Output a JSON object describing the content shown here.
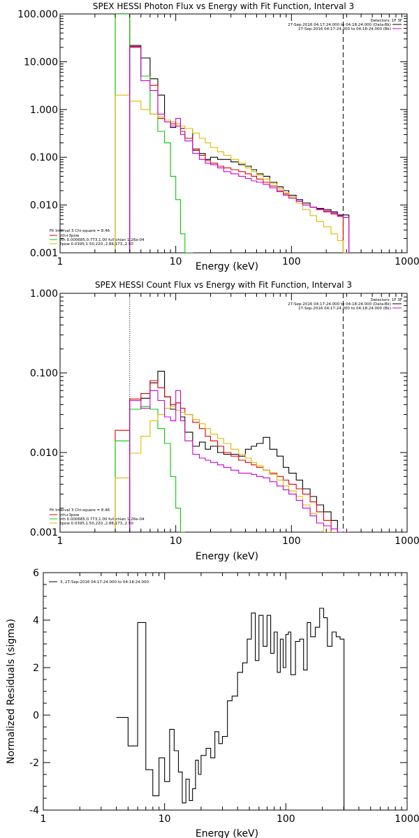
{
  "panels": [
    {
      "title": "SPEX HESSI Photon Flux vs Energy with Fit Function, Interval 3",
      "xlabel": "Energy (keV)",
      "ylabel": "",
      "x_ticks": [
        "1",
        "10",
        "100",
        "1000"
      ],
      "y_ticks": [
        "0.001",
        "0.010",
        "0.100",
        "1.000",
        "10.000",
        "100.000"
      ],
      "legend_tr": [
        "Detectors: 1F 3F",
        "27-Sep-2016 04:17:24.000 to 04:18:24.000 (Data-Bk)",
        "27-Sep-2016 04:17:24.000 to 04:18:24.000 (Bk)"
      ],
      "legend_bl": [
        "Fit Interval 3   Chi-square = 8.46",
        "vth+3pow",
        "vth 0.000685,0.773,1.00  full chian 1.26e-04",
        "3pow 0.0395,1.50,220.,2.88,173.,2.50"
      ]
    },
    {
      "title": "SPEX HESSI Count Flux vs Energy with Fit Function, Interval 3",
      "xlabel": "Energy (keV)",
      "ylabel": "",
      "x_ticks": [
        "1",
        "10",
        "100",
        "1000"
      ],
      "y_ticks": [
        "0.001",
        "0.010",
        "0.100",
        "1.000"
      ],
      "legend_tr": [
        "Detectors: 1F 3F",
        "27-Sep-2016 04:17:24.000 to 04:18:24.000 (Data-Bk)",
        "27-Sep-2016 04:17:24.000 to 04:18:24.000 (Bk)"
      ],
      "legend_bl": [
        "Fit Interval 3   Chi-square = 8.46",
        "vth+3pow",
        "vth 0.000685,0.773,1.00  full chian 1.26e-04",
        "3pow 0.0395,1.50,220.,2.88,173.,2.50"
      ]
    },
    {
      "title": "",
      "xlabel": "Energy (keV)",
      "ylabel": "Normalized Residuals (sigma)",
      "x_ticks": [
        "1",
        "10",
        "100",
        "1000"
      ],
      "y_ticks": [
        "-4",
        "-2",
        "0",
        "2",
        "4",
        "6"
      ],
      "legend_tl": [
        "3, 27-Sep-2016 04:17:24.000 to 04:18:24.000"
      ]
    }
  ],
  "colors": {
    "data": "#000000",
    "fit_total": "#dd0000",
    "vth": "#00cc00",
    "pow": "#ddbb00",
    "bk": "#cc00cc"
  },
  "chart_data": [
    {
      "type": "line",
      "scale": "log-log",
      "xlim": [
        1,
        1000
      ],
      "ylim": [
        0.001,
        100
      ],
      "vlines": [
        {
          "x": 4,
          "style": "dotted"
        },
        {
          "x": 280,
          "style": "dashed"
        }
      ],
      "x": [
        3,
        4,
        5,
        6,
        7,
        8,
        9,
        10,
        11,
        12,
        14,
        16,
        18,
        20,
        23,
        26,
        30,
        35,
        40,
        45,
        50,
        57,
        65,
        75,
        85,
        95,
        110,
        125,
        145,
        165,
        190,
        220,
        250,
        280
      ],
      "series": [
        {
          "name": "Data-Bk",
          "color": "#000000",
          "values": [
            null,
            22,
            12,
            4.4,
            2.0,
            0.6,
            0.42,
            0.5,
            0.4,
            0.4,
            0.14,
            0.12,
            0.09,
            0.1,
            0.09,
            0.09,
            0.08,
            0.07,
            0.065,
            0.055,
            0.045,
            0.04,
            0.03,
            0.024,
            0.02,
            0.016,
            0.013,
            0.011,
            0.009,
            0.0085,
            0.008,
            0.0072,
            0.0062,
            0.0062
          ]
        },
        {
          "name": "vth+3pow",
          "color": "#dd0000",
          "values": [
            100,
            21,
            5.0,
            3.2,
            0.65,
            0.6,
            0.5,
            0.45,
            0.35,
            0.25,
            0.15,
            0.11,
            0.085,
            0.075,
            0.065,
            0.06,
            0.055,
            0.05,
            0.045,
            0.04,
            0.035,
            0.03,
            0.025,
            0.02,
            0.017,
            0.014,
            0.012,
            0.01,
            0.009,
            0.008,
            0.0072,
            0.0065,
            0.0058,
            0.001
          ]
        },
        {
          "name": "vth",
          "color": "#00cc00",
          "values": [
            100,
            20,
            5.0,
            0.8,
            0.35,
            0.2,
            0.04,
            0.013,
            0.0025,
            0.001,
            null,
            null,
            null,
            null,
            null,
            null,
            null,
            null,
            null,
            null,
            null,
            null,
            null,
            null,
            null,
            null,
            null,
            null,
            null,
            null,
            null,
            null,
            null,
            null
          ]
        },
        {
          "name": "3pow",
          "color": "#ddbb00",
          "values": [
            2.0,
            1.5,
            1.0,
            0.8,
            0.7,
            0.6,
            0.55,
            0.5,
            0.45,
            0.4,
            0.32,
            0.25,
            0.2,
            0.16,
            0.13,
            0.11,
            0.09,
            0.075,
            0.06,
            0.05,
            0.042,
            0.035,
            0.028,
            0.022,
            0.018,
            0.015,
            0.011,
            0.008,
            0.006,
            0.0045,
            0.0035,
            0.0025,
            0.0018,
            0.001
          ]
        },
        {
          "name": "Bk",
          "color": "#cc00cc",
          "values": [
            null,
            20,
            4.0,
            2.5,
            0.8,
            0.55,
            0.45,
            0.65,
            0.3,
            0.22,
            0.12,
            0.09,
            0.075,
            0.07,
            0.06,
            0.05,
            0.045,
            0.04,
            0.036,
            0.032,
            0.03,
            0.027,
            0.023,
            0.019,
            0.016,
            0.014,
            0.012,
            0.01,
            0.009,
            0.0082,
            0.0075,
            0.0068,
            0.006,
            0.0055
          ]
        }
      ]
    },
    {
      "type": "line",
      "scale": "log-log",
      "xlim": [
        1,
        1000
      ],
      "ylim": [
        0.001,
        1
      ],
      "vlines": [
        {
          "x": 4,
          "style": "dotted"
        },
        {
          "x": 280,
          "style": "dashed"
        }
      ],
      "x": [
        3,
        4,
        5,
        6,
        7,
        8,
        9,
        10,
        11,
        12,
        14,
        16,
        18,
        20,
        23,
        26,
        30,
        35,
        40,
        45,
        50,
        57,
        65,
        75,
        85,
        95,
        110,
        125,
        145,
        165,
        190,
        220,
        250,
        280
      ],
      "series": [
        {
          "name": "Data-Bk",
          "color": "#000000",
          "values": [
            null,
            0.045,
            0.048,
            0.075,
            0.105,
            0.05,
            0.035,
            0.042,
            0.028,
            0.018,
            0.012,
            0.0135,
            0.011,
            0.012,
            0.01,
            0.0095,
            0.0095,
            0.009,
            0.011,
            0.012,
            0.013,
            0.0155,
            0.011,
            0.009,
            0.0065,
            0.0055,
            0.0045,
            0.0035,
            0.0028,
            0.0022,
            0.0018,
            0.0014,
            0.001,
            0.001
          ]
        },
        {
          "name": "vth+3pow",
          "color": "#dd0000",
          "values": [
            0.019,
            0.047,
            0.055,
            0.08,
            0.065,
            0.05,
            0.04,
            0.042,
            0.036,
            0.03,
            0.024,
            0.02,
            0.016,
            0.014,
            0.012,
            0.01,
            0.009,
            0.008,
            0.0075,
            0.007,
            0.0065,
            0.006,
            0.0055,
            0.005,
            0.0045,
            0.004,
            0.0035,
            0.003,
            0.0024,
            0.0018,
            0.0014,
            0.001,
            0.001,
            0.001
          ]
        },
        {
          "name": "vth",
          "color": "#00cc00",
          "values": [
            0.014,
            0.035,
            0.038,
            0.035,
            0.02,
            0.013,
            0.005,
            0.002,
            0.001,
            null,
            null,
            null,
            null,
            null,
            null,
            null,
            null,
            null,
            null,
            null,
            null,
            null,
            null,
            null,
            null,
            null,
            null,
            null,
            null,
            null,
            null,
            null,
            null,
            null
          ]
        },
        {
          "name": "3pow",
          "color": "#ddbb00",
          "values": [
            0.0048,
            0.0098,
            0.016,
            0.025,
            0.03,
            0.036,
            0.038,
            0.034,
            0.032,
            0.03,
            0.026,
            0.023,
            0.02,
            0.017,
            0.015,
            0.013,
            0.011,
            0.0095,
            0.0085,
            0.0075,
            0.0068,
            0.006,
            0.0053,
            0.0045,
            0.0038,
            0.0033,
            0.0028,
            0.0022,
            0.0017,
            0.0013,
            0.001,
            0.001,
            null,
            null
          ]
        },
        {
          "name": "Bk",
          "color": "#cc00cc",
          "values": [
            null,
            0.045,
            0.036,
            0.06,
            0.045,
            0.028,
            0.025,
            0.06,
            0.025,
            0.014,
            0.0095,
            0.0085,
            0.008,
            0.0075,
            0.007,
            0.0065,
            0.006,
            0.0055,
            0.0055,
            0.0053,
            0.005,
            0.0048,
            0.0043,
            0.0038,
            0.0034,
            0.003,
            0.0025,
            0.002,
            0.0016,
            0.0013,
            0.0012,
            0.0011,
            0.001,
            0.001
          ]
        }
      ]
    },
    {
      "type": "line",
      "scale": "log-linear",
      "xlim": [
        1,
        1000
      ],
      "ylim": [
        -4,
        6
      ],
      "x": [
        4,
        5,
        6,
        7,
        8,
        9,
        10,
        11,
        12,
        13,
        14,
        15,
        16,
        17,
        18,
        19,
        20,
        22,
        24,
        26,
        28,
        30,
        33,
        36,
        40,
        44,
        48,
        52,
        56,
        60,
        65,
        70,
        75,
        80,
        85,
        90,
        95,
        100,
        105,
        110,
        120,
        130,
        140,
        150,
        160,
        175,
        190,
        205,
        220,
        240,
        260,
        280
      ],
      "series": [
        {
          "name": "3, 27-Sep-2016 04:17:24.000 to 04:18:24.000",
          "color": "#000000",
          "values": [
            -0.1,
            -1.3,
            3.9,
            -2.3,
            -3.4,
            -1.8,
            -2.8,
            -0.6,
            -1.5,
            -2.4,
            -3.7,
            -2.7,
            -3.6,
            -3.1,
            -1.9,
            -2.5,
            -1.7,
            -1.4,
            -1.8,
            -0.7,
            -1.2,
            -0.9,
            0.6,
            0.8,
            1.8,
            2.2,
            3.2,
            4.3,
            2.3,
            4.2,
            2.9,
            4.2,
            2.6,
            3.5,
            1.8,
            3.2,
            2.0,
            3.4,
            3.5,
            1.7,
            3.1,
            3.2,
            1.9,
            3.9,
            3.3,
            3.7,
            4.5,
            4.1,
            2.9,
            3.5,
            3.3,
            3.2
          ]
        }
      ]
    }
  ]
}
